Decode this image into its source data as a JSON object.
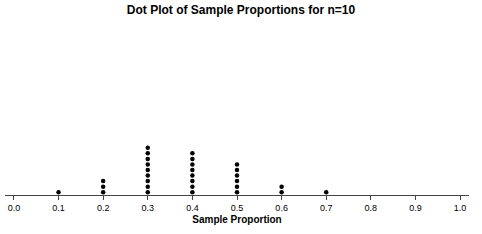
{
  "chart_data": {
    "type": "dot",
    "title": "Dot Plot of Sample Proportions for n=10",
    "x_label": "Sample Proportion",
    "x": [
      0.1,
      0.2,
      0.3,
      0.4,
      0.5,
      0.6,
      0.7
    ],
    "values": [
      1,
      3,
      9,
      8,
      6,
      2,
      1
    ],
    "color": "#000000",
    "xlim": [
      -0.02,
      1.02
    ],
    "xticks": [
      {
        "value": 0,
        "label": "0.0"
      },
      0.1,
      0.2,
      0.3,
      0.4,
      0.5,
      0.6,
      0.7,
      0.8,
      0.9,
      {
        "value": 1,
        "label": "1.0"
      }
    ],
    "grid": false,
    "tick_labels": "x"
  }
}
